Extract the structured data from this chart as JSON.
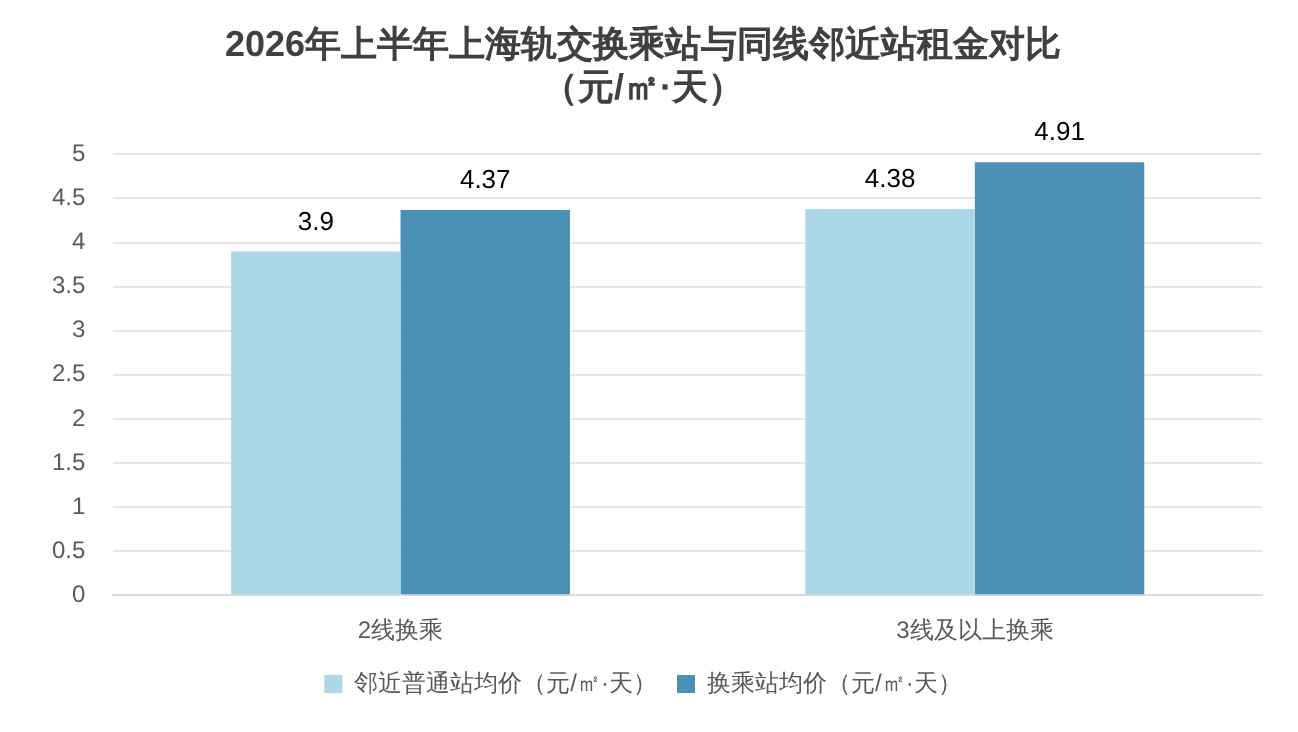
{
  "chart_data": {
    "type": "bar",
    "title": "2026年上半年上海轨交换乘站与同线邻近站租金对比",
    "subtitle": "（元/㎡·天）",
    "categories": [
      "2线换乘",
      "3线及以上换乘"
    ],
    "series": [
      {
        "name": "邻近普通站均价（元/㎡·天）",
        "color": "#acd7e6",
        "values": [
          3.9,
          4.38
        ]
      },
      {
        "name": "换乘站均价（元/㎡·天）",
        "color": "#4a91b5",
        "values": [
          4.37,
          4.91
        ]
      }
    ],
    "ylim": [
      0,
      5
    ],
    "yticks": [
      0,
      0.5,
      1,
      1.5,
      2,
      2.5,
      3,
      3.5,
      4,
      4.5,
      5
    ],
    "grid": "y",
    "legend": "bottom",
    "data_labels": true
  }
}
